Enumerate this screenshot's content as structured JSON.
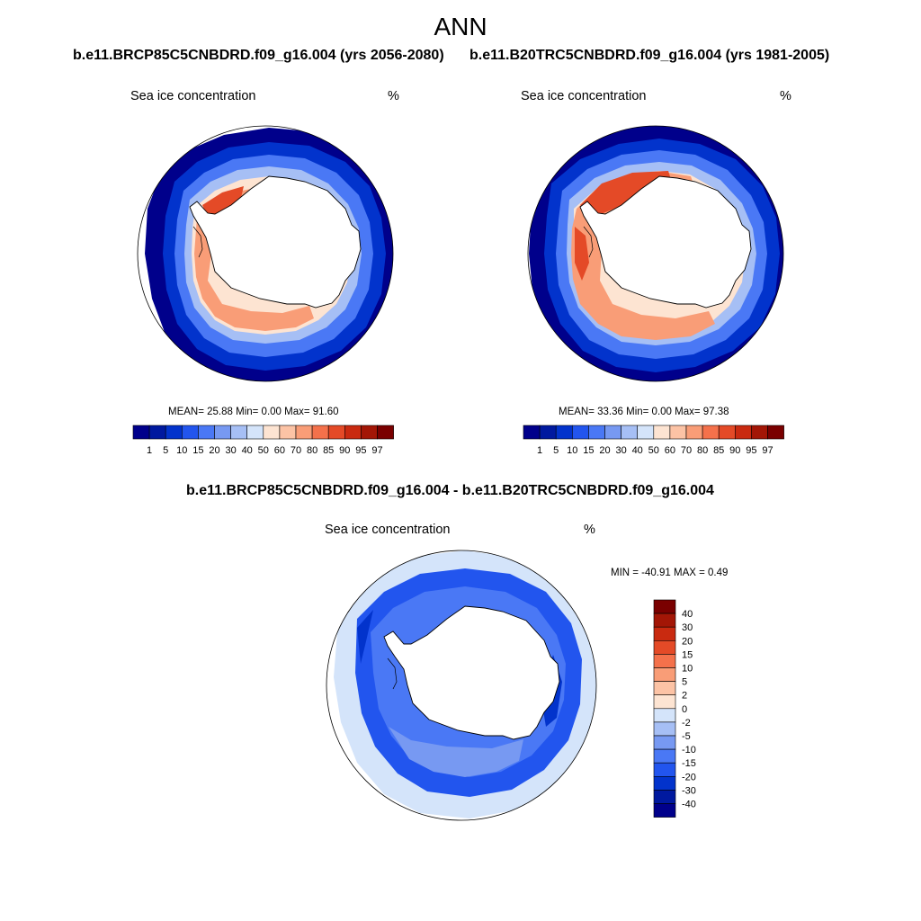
{
  "title": "ANN",
  "panels": [
    {
      "header": "b.e11.BRCP85C5CNBDRD.f09_g16.004 (yrs 2056-2080)",
      "left_label": "Sea ice concentration",
      "right_label": "%",
      "stats": "MEAN=  25.88  Min=   0.00  Max=  91.60",
      "mean": 25.88,
      "min": 0.0,
      "max": 91.6
    },
    {
      "header": "b.e11.B20TRC5CNBDRD.f09_g16.004 (yrs 1981-2005)",
      "left_label": "Sea ice concentration",
      "right_label": "%",
      "stats": "MEAN=  33.36  Min=   0.00  Max=  97.38",
      "mean": 33.36,
      "min": 0.0,
      "max": 97.38
    }
  ],
  "diff_panel": {
    "header": "b.e11.BRCP85C5CNBDRD.f09_g16.004 - b.e11.B20TRC5CNBDRD.f09_g16.004",
    "left_label": "Sea ice concentration",
    "right_label": "%",
    "stats": "MIN = -40.91 MAX =   0.49",
    "min": -40.91,
    "max": 0.49
  },
  "colorbar_concentration": {
    "levels": [
      "1",
      "5",
      "10",
      "15",
      "20",
      "30",
      "40",
      "50",
      "60",
      "70",
      "80",
      "85",
      "90",
      "95",
      "97"
    ],
    "colors": [
      "#00008b",
      "#00199f",
      "#0233cc",
      "#2255ee",
      "#4a78f5",
      "#7799f2",
      "#a6bff5",
      "#d4e4fa",
      "#fde4d2",
      "#fcc3a5",
      "#f99d77",
      "#f4714b",
      "#e44a27",
      "#c92a10",
      "#a31606",
      "#7a0000"
    ]
  },
  "colorbar_difference": {
    "levels": [
      "40",
      "30",
      "20",
      "15",
      "10",
      "5",
      "2",
      "0",
      "-2",
      "-5",
      "-10",
      "-15",
      "-20",
      "-30",
      "-40"
    ],
    "colors": [
      "#7a0000",
      "#a31606",
      "#c92a10",
      "#e44a27",
      "#f4714b",
      "#f99d77",
      "#fcc3a5",
      "#fde4d2",
      "#d4e4fa",
      "#a6bff5",
      "#7799f2",
      "#4a78f5",
      "#2255ee",
      "#0233cc",
      "#00199f",
      "#00008b"
    ]
  }
}
